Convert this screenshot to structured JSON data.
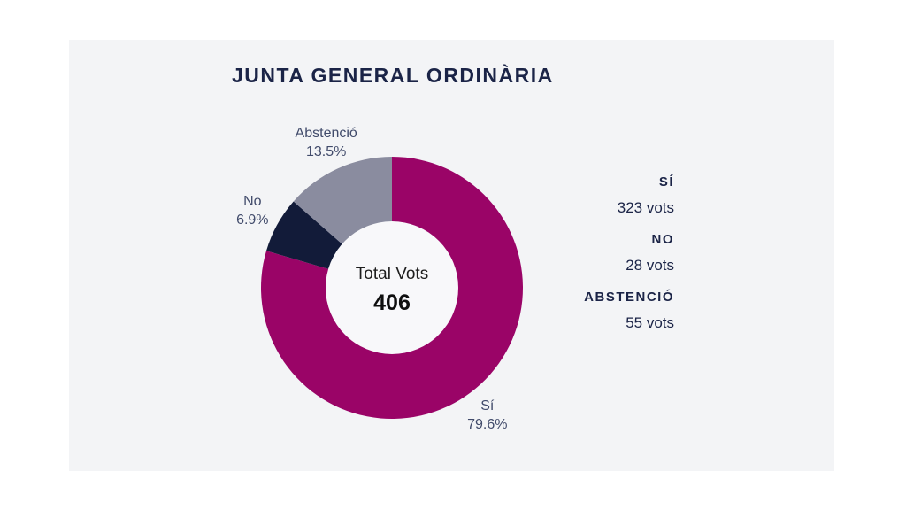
{
  "page": {
    "background": "#ffffff"
  },
  "card": {
    "background": "#f3f4f6",
    "title_color": "#1b2447"
  },
  "chart_data": {
    "type": "pie",
    "donut": true,
    "title": "JUNTA GENERAL ORDINÀRIA",
    "categories": [
      "Sí",
      "No",
      "Abstenció"
    ],
    "slugs": [
      "si",
      "no",
      "abstencio"
    ],
    "values": [
      323,
      28,
      55
    ],
    "percent_labels": [
      "79.6%",
      "6.9%",
      "13.5%"
    ],
    "total": 406,
    "colors": [
      "#9a0467",
      "#121b39",
      "#8a8c9f"
    ],
    "center_label": "Total Vots",
    "center_value": "406",
    "start_angle_deg": 0,
    "direction": "clockwise",
    "label_radius": 180,
    "slice_label_color": "#414b6b",
    "hole_color": "#f8f8fa",
    "legend_position": "right"
  },
  "legend": {
    "items": [
      {
        "label": "SÍ",
        "value": "323 vots"
      },
      {
        "label": "NO",
        "value": "28 vots"
      },
      {
        "label": "ABSTENCIÓ",
        "value": "55 vots"
      }
    ]
  }
}
